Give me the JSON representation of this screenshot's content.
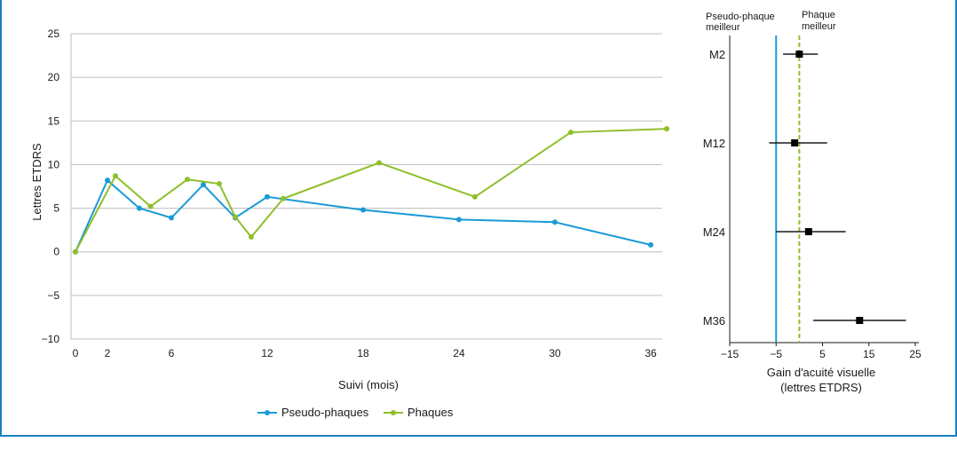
{
  "chart_data": [
    {
      "type": "line",
      "xlabel": "Suivi (mois)",
      "ylabel": "Lettres ETDRS",
      "ylim": [
        -10,
        25
      ],
      "xlim": [
        0,
        37
      ],
      "yticks": [
        25,
        20,
        15,
        10,
        5,
        0,
        -5,
        -10
      ],
      "yticklabels": [
        "25",
        "20",
        "15",
        "10",
        "5",
        "0",
        "−5",
        "−10"
      ],
      "xticks": [
        0,
        2,
        6,
        12,
        18,
        24,
        30,
        36
      ],
      "xticklabels": [
        "0",
        "2",
        "6",
        "12",
        "18",
        "24",
        "30",
        "36"
      ],
      "grid": true,
      "legend_position": "bottom-center",
      "series": [
        {
          "name": "Pseudo-phaques",
          "color": "#1a9ad6",
          "points": [
            [
              0,
              0
            ],
            [
              2,
              8.2
            ],
            [
              4,
              5.0
            ],
            [
              6,
              3.9
            ],
            [
              8,
              7.7
            ],
            [
              10,
              3.9
            ],
            [
              12,
              6.3
            ],
            [
              18,
              4.8
            ],
            [
              24,
              3.7
            ],
            [
              30,
              3.4
            ],
            [
              36,
              0.8
            ]
          ]
        },
        {
          "name": "Phaques",
          "color": "#8fbf2a",
          "points": [
            [
              0,
              0
            ],
            [
              2.5,
              8.7
            ],
            [
              4.7,
              5.2
            ],
            [
              7,
              8.3
            ],
            [
              9,
              7.8
            ],
            [
              10,
              4.0
            ],
            [
              11,
              1.7
            ],
            [
              13,
              6.1
            ],
            [
              19,
              10.2
            ],
            [
              25,
              6.3
            ],
            [
              31,
              13.7
            ],
            [
              37,
              14.1
            ]
          ]
        }
      ]
    },
    {
      "type": "forest",
      "xlabel_line1": "Gain d'acuité visuelle",
      "xlabel_line2": "(lettres ETDRS)",
      "xlim": [
        -15,
        25
      ],
      "xticks": [
        -15,
        -5,
        5,
        15,
        25
      ],
      "xticklabels": [
        "−15",
        "−5",
        "5",
        "15",
        "25"
      ],
      "left_head_line1": "Pseudo-phaque",
      "left_head_line2": "meilleur",
      "right_head_line1": "Phaque",
      "right_head_line2": "meilleur",
      "reference_lines": [
        {
          "value": -5,
          "style": "solid",
          "color": "#1a9ad6"
        },
        {
          "value": 0,
          "style": "dashed",
          "color": "#8fbf2a"
        }
      ],
      "rows": [
        {
          "label": "M2",
          "estimate": 0,
          "low": -3.5,
          "high": 4
        },
        {
          "label": "M12",
          "estimate": -1,
          "low": -6.5,
          "high": 6
        },
        {
          "label": "M24",
          "estimate": 2,
          "low": -5,
          "high": 10
        },
        {
          "label": "M36",
          "estimate": 13,
          "low": 3,
          "high": 23
        }
      ]
    }
  ]
}
